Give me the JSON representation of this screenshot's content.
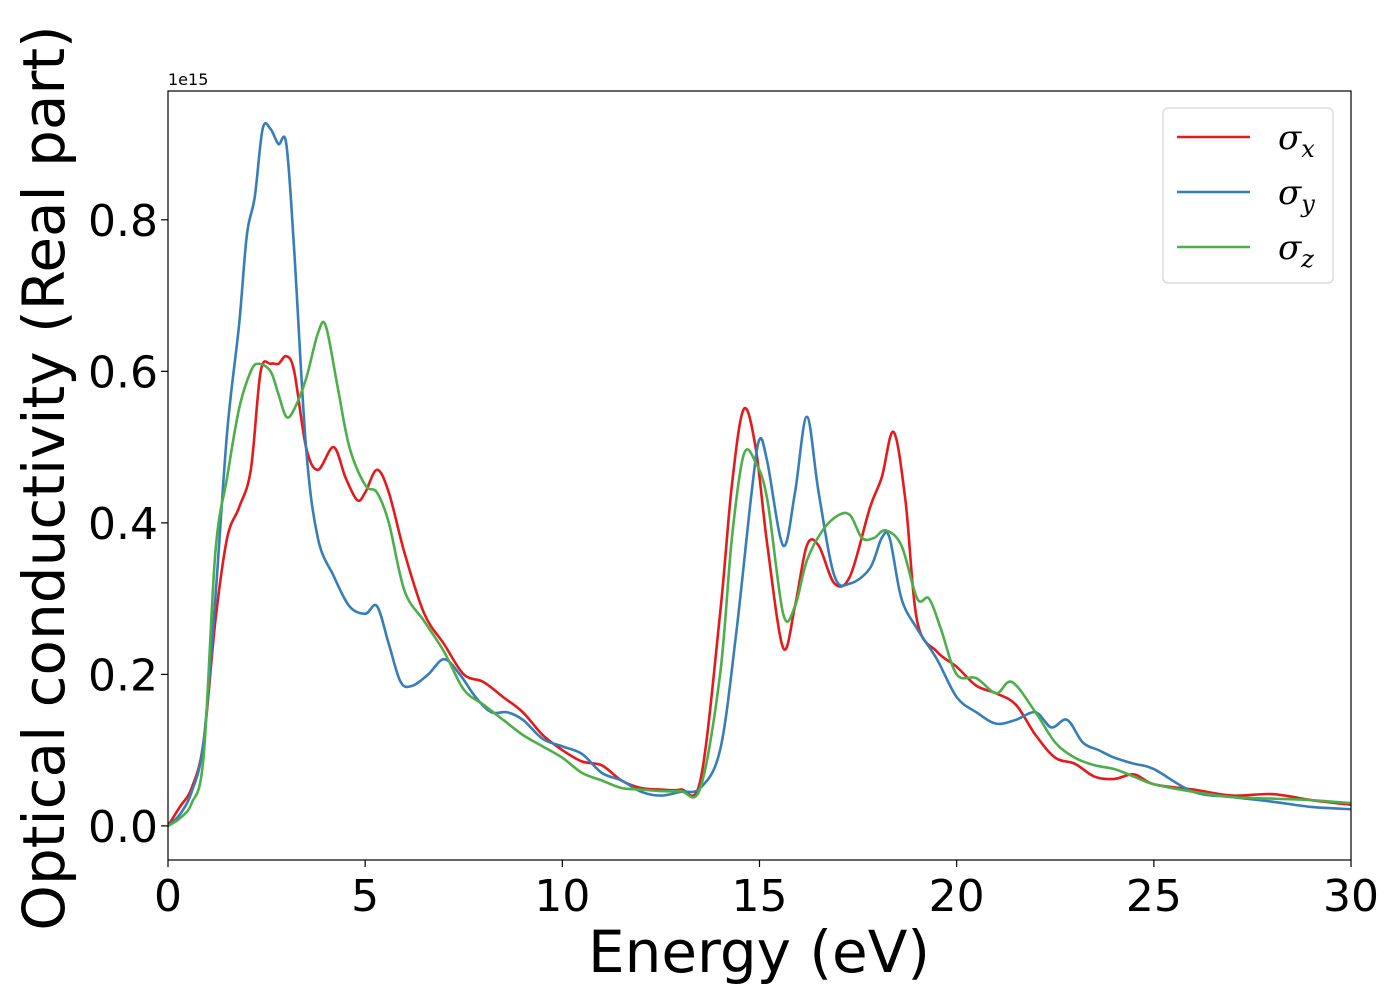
{
  "chart_data": {
    "type": "line",
    "title": "",
    "xlabel": "Energy (eV)",
    "ylabel": "Optical conductivity (Real part)",
    "y_offset_label": "1e15",
    "xlim": [
      0,
      30
    ],
    "ylim": [
      -0.045,
      0.97
    ],
    "x_ticks": [
      0,
      5,
      10,
      15,
      20,
      25,
      30
    ],
    "x_tick_labels": [
      "0",
      "5",
      "10",
      "15",
      "20",
      "25",
      "30"
    ],
    "y_ticks": [
      0.0,
      0.2,
      0.4,
      0.6,
      0.8
    ],
    "y_tick_labels": [
      "0.0",
      "0.2",
      "0.4",
      "0.6",
      "0.8"
    ],
    "grid": false,
    "legend_position": "top-right",
    "series": [
      {
        "name": "σx",
        "symbol": "σ",
        "subscript": "x",
        "color": "#e41a1c",
        "x": [
          0,
          0.3,
          0.6,
          0.9,
          1.2,
          1.5,
          1.8,
          2.1,
          2.35,
          2.6,
          2.8,
          3.0,
          3.2,
          3.5,
          3.8,
          4.2,
          4.5,
          4.8,
          5.0,
          5.3,
          5.6,
          6.0,
          6.5,
          7.0,
          7.5,
          8.0,
          8.5,
          9.0,
          9.5,
          10.0,
          10.5,
          11.0,
          11.5,
          12.0,
          12.5,
          13.0,
          13.5,
          14.0,
          14.3,
          14.6,
          14.9,
          15.2,
          15.6,
          15.9,
          16.2,
          16.5,
          16.9,
          17.3,
          17.8,
          18.1,
          18.4,
          18.7,
          19.0,
          19.5,
          20.0,
          20.5,
          21.0,
          21.5,
          22.0,
          22.5,
          23.0,
          23.5,
          24.0,
          24.5,
          25.0,
          26.0,
          27.0,
          28.0,
          29.0,
          30.0
        ],
        "y": [
          0.0,
          0.025,
          0.05,
          0.11,
          0.27,
          0.38,
          0.42,
          0.47,
          0.6,
          0.61,
          0.61,
          0.62,
          0.6,
          0.5,
          0.47,
          0.5,
          0.46,
          0.43,
          0.44,
          0.47,
          0.44,
          0.36,
          0.28,
          0.24,
          0.2,
          0.19,
          0.17,
          0.15,
          0.12,
          0.1,
          0.085,
          0.08,
          0.06,
          0.05,
          0.048,
          0.048,
          0.06,
          0.28,
          0.45,
          0.55,
          0.5,
          0.37,
          0.235,
          0.29,
          0.37,
          0.37,
          0.32,
          0.33,
          0.42,
          0.46,
          0.52,
          0.43,
          0.27,
          0.23,
          0.21,
          0.185,
          0.175,
          0.16,
          0.12,
          0.09,
          0.082,
          0.065,
          0.062,
          0.068,
          0.055,
          0.048,
          0.04,
          0.042,
          0.034,
          0.028
        ]
      },
      {
        "name": "σy",
        "symbol": "σ",
        "subscript": "y",
        "color": "#377eb8",
        "x": [
          0,
          0.3,
          0.6,
          0.9,
          1.2,
          1.5,
          1.8,
          2.0,
          2.2,
          2.4,
          2.6,
          2.8,
          3.0,
          3.2,
          3.5,
          3.8,
          4.2,
          4.6,
          5.0,
          5.3,
          5.6,
          5.9,
          6.2,
          6.6,
          7.0,
          7.4,
          7.8,
          8.2,
          8.6,
          9.0,
          9.5,
          10.0,
          10.5,
          11.0,
          11.5,
          12.0,
          12.5,
          13.0,
          13.5,
          14.0,
          14.4,
          14.8,
          15.0,
          15.2,
          15.6,
          15.9,
          16.2,
          16.5,
          16.9,
          17.3,
          17.8,
          18.1,
          18.3,
          18.6,
          19.0,
          19.5,
          20.0,
          20.5,
          21.0,
          21.5,
          22.0,
          22.4,
          22.8,
          23.2,
          23.6,
          24.0,
          24.5,
          25.0,
          26.0,
          27.0,
          28.0,
          29.0,
          30.0
        ],
        "y": [
          0.0,
          0.015,
          0.045,
          0.11,
          0.3,
          0.52,
          0.66,
          0.78,
          0.83,
          0.92,
          0.92,
          0.9,
          0.9,
          0.76,
          0.5,
          0.38,
          0.33,
          0.29,
          0.28,
          0.29,
          0.24,
          0.19,
          0.185,
          0.2,
          0.22,
          0.2,
          0.17,
          0.15,
          0.15,
          0.14,
          0.115,
          0.105,
          0.095,
          0.07,
          0.06,
          0.045,
          0.04,
          0.045,
          0.05,
          0.1,
          0.25,
          0.44,
          0.51,
          0.48,
          0.37,
          0.44,
          0.54,
          0.44,
          0.33,
          0.32,
          0.34,
          0.38,
          0.38,
          0.3,
          0.26,
          0.22,
          0.17,
          0.15,
          0.135,
          0.14,
          0.15,
          0.13,
          0.14,
          0.11,
          0.1,
          0.09,
          0.082,
          0.075,
          0.045,
          0.038,
          0.032,
          0.025,
          0.022
        ]
      },
      {
        "name": "σz",
        "symbol": "σ",
        "subscript": "z",
        "color": "#4daf4a",
        "x": [
          0,
          0.3,
          0.6,
          0.9,
          1.2,
          1.5,
          1.8,
          2.1,
          2.3,
          2.6,
          2.8,
          3.0,
          3.2,
          3.5,
          3.8,
          4.0,
          4.3,
          4.6,
          5.0,
          5.3,
          5.6,
          6.0,
          6.5,
          7.0,
          7.5,
          8.0,
          8.5,
          9.0,
          9.5,
          10.0,
          10.5,
          11.0,
          11.5,
          12.0,
          12.5,
          13.0,
          13.5,
          14.0,
          14.3,
          14.6,
          14.9,
          15.2,
          15.6,
          15.9,
          16.2,
          16.6,
          17.0,
          17.3,
          17.6,
          17.9,
          18.2,
          18.6,
          19.0,
          19.3,
          19.6,
          20.0,
          20.5,
          21.0,
          21.4,
          22.0,
          22.5,
          23.0,
          23.5,
          24.0,
          24.5,
          25.0,
          26.0,
          27.0,
          28.0,
          29.0,
          30.0
        ],
        "y": [
          0.0,
          0.01,
          0.03,
          0.09,
          0.36,
          0.46,
          0.55,
          0.6,
          0.61,
          0.6,
          0.57,
          0.54,
          0.55,
          0.59,
          0.65,
          0.66,
          0.58,
          0.5,
          0.45,
          0.44,
          0.4,
          0.31,
          0.27,
          0.23,
          0.18,
          0.16,
          0.14,
          0.12,
          0.105,
          0.09,
          0.07,
          0.06,
          0.05,
          0.048,
          0.046,
          0.046,
          0.05,
          0.2,
          0.38,
          0.49,
          0.48,
          0.43,
          0.28,
          0.29,
          0.35,
          0.39,
          0.41,
          0.41,
          0.38,
          0.38,
          0.39,
          0.37,
          0.3,
          0.3,
          0.26,
          0.2,
          0.195,
          0.175,
          0.19,
          0.15,
          0.11,
          0.09,
          0.08,
          0.075,
          0.065,
          0.055,
          0.045,
          0.038,
          0.036,
          0.034,
          0.03
        ]
      }
    ]
  }
}
